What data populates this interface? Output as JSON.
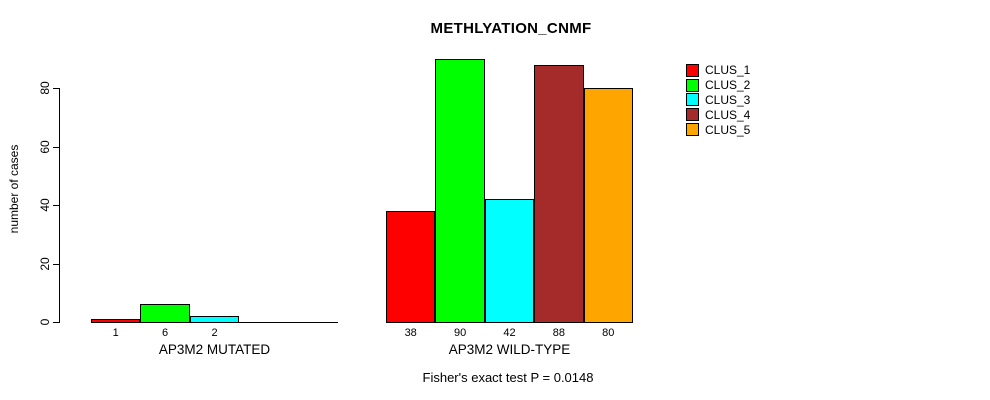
{
  "chart_data": {
    "type": "bar",
    "title": "METHLYATION_CNMF",
    "ylabel": "number of cases",
    "xlabel": "",
    "ylim": [
      0,
      90
    ],
    "yticks": [
      0,
      20,
      40,
      60,
      80
    ],
    "grid": false,
    "legend_position": "right",
    "series": [
      {
        "name": "CLUS_1",
        "color": "#ff0000"
      },
      {
        "name": "CLUS_2",
        "color": "#00ff00"
      },
      {
        "name": "CLUS_3",
        "color": "#00ffff"
      },
      {
        "name": "CLUS_4",
        "color": "#a52a2a"
      },
      {
        "name": "CLUS_5",
        "color": "#ffa500"
      }
    ],
    "groups": [
      {
        "label": "AP3M2 MUTATED",
        "values": [
          1,
          6,
          2,
          0,
          0
        ],
        "bar_labels": [
          "1",
          "6",
          "2",
          "",
          ""
        ]
      },
      {
        "label": "AP3M2 WILD-TYPE",
        "values": [
          38,
          90,
          42,
          88,
          80
        ],
        "bar_labels": [
          "38",
          "90",
          "42",
          "88",
          "80"
        ]
      }
    ],
    "annotation": "Fisher's exact test P = 0.0148"
  },
  "colors": {
    "axis": "#000000",
    "text": "#000000",
    "background": "#ffffff"
  }
}
